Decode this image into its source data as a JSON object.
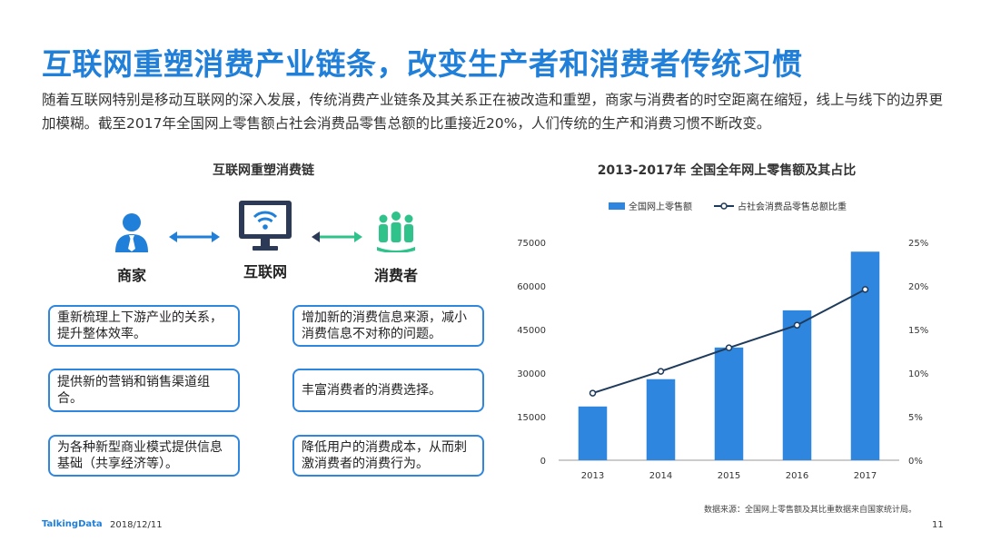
{
  "title": "互联网重塑消费产业链条，改变生产者和消费者传统习惯",
  "intro": "随着互联网特别是移动互联网的深入发展，传统消费产业链条及其关系正在被改造和重塑，商家与消费者的时空距离在缩短，线上与线下的边界更加模糊。截至2017年全国网上零售额占社会消费品零售总额的比重接近20%，人们传统的生产和消费习惯不断改变。",
  "diagram": {
    "title": "互联网重塑消费链",
    "actors": {
      "merchant": "商家",
      "internet": "互联网",
      "consumer": "消费者"
    },
    "merchant_points": [
      "重新梳理上下游产业的关系，提升整体效率。",
      "提供新的营销和销售渠道组合。",
      "为各种新型商业模式提供信息基础（共享经济等）。"
    ],
    "consumer_points": [
      "增加新的消费信息来源，减小消费信息不对称的问题。",
      "丰富消费者的消费选择。",
      "降低用户的消费成本，从而刺激消费者的消费行为。"
    ],
    "colors": {
      "icon_blue": "#1f7fd9",
      "icon_green": "#2fc28a",
      "box_border": "#2e86de",
      "screen": "#2d3a57"
    }
  },
  "chart_data": {
    "type": "bar",
    "title": "2013-2017年 全国全年网上零售额及其占比",
    "categories": [
      "2013",
      "2014",
      "2015",
      "2016",
      "2017"
    ],
    "series": [
      {
        "name": "全国网上零售额",
        "type": "bar",
        "axis": "left",
        "color": "#2e86de",
        "values": [
          18500,
          27900,
          38800,
          51600,
          71800
        ]
      },
      {
        "name": "占社会消费品零售总额比重",
        "type": "line",
        "axis": "right",
        "color": "#1f3b5c",
        "values": [
          7.7,
          10.2,
          12.9,
          15.5,
          19.6
        ]
      }
    ],
    "y_left": {
      "ticks": [
        "0",
        "15000",
        "30000",
        "45000",
        "60000",
        "75000"
      ],
      "min": 0,
      "max": 75000
    },
    "y_right": {
      "ticks": [
        "0%",
        "5%",
        "10%",
        "15%",
        "20%",
        "25%"
      ],
      "min": 0,
      "max": 25
    },
    "legend_position": "top",
    "grid": false
  },
  "source": "数据来源：全国网上零售额及其比重数据来自国家统计局。",
  "footer": {
    "logo": "TalkingData",
    "date": "2018/12/11",
    "page": "11"
  }
}
